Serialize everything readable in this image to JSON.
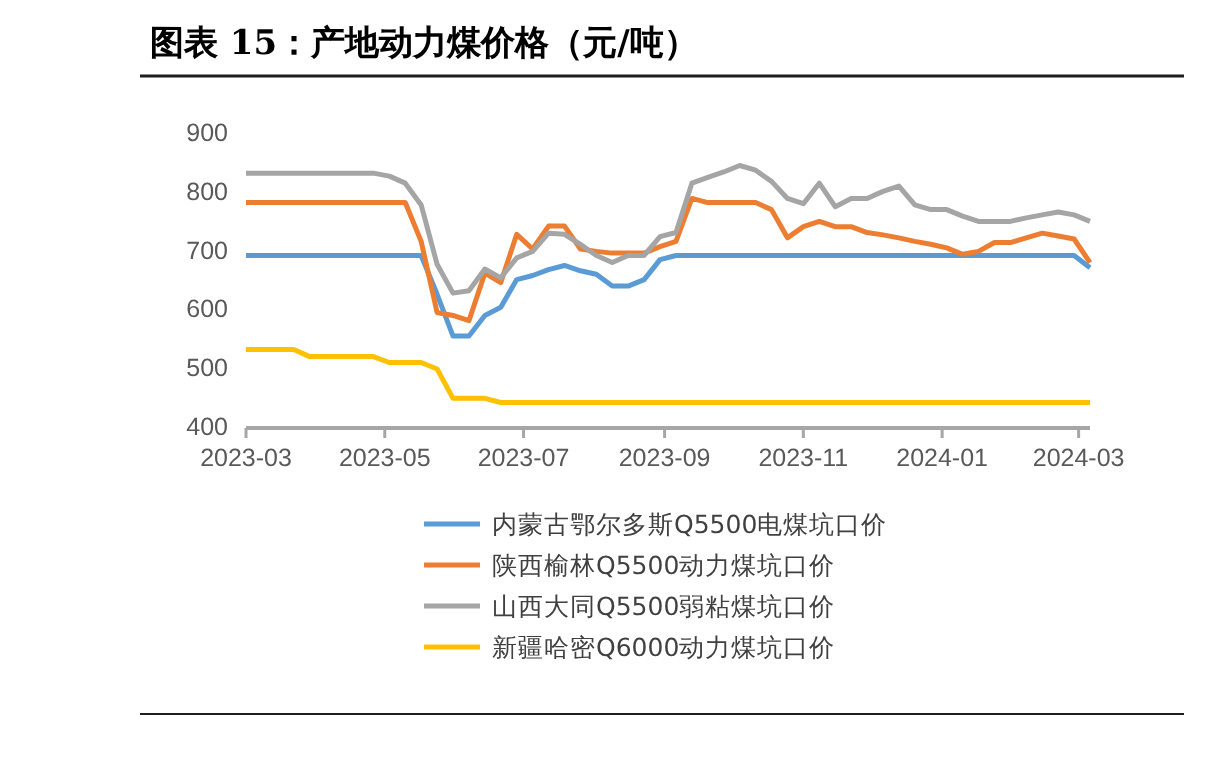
{
  "chart_data": {
    "type": "line",
    "title": "图表 15：产地动力煤价格（元/吨）",
    "x": [
      "2023-03-01",
      "2023-03-08",
      "2023-03-15",
      "2023-03-22",
      "2023-03-29",
      "2023-04-05",
      "2023-04-12",
      "2023-04-19",
      "2023-04-26",
      "2023-05-03",
      "2023-05-10",
      "2023-05-17",
      "2023-05-24",
      "2023-05-31",
      "2023-06-07",
      "2023-06-14",
      "2023-06-21",
      "2023-06-28",
      "2023-07-05",
      "2023-07-12",
      "2023-07-19",
      "2023-07-26",
      "2023-08-02",
      "2023-08-09",
      "2023-08-16",
      "2023-08-23",
      "2023-08-30",
      "2023-09-06",
      "2023-09-13",
      "2023-09-20",
      "2023-09-27",
      "2023-10-04",
      "2023-10-11",
      "2023-10-18",
      "2023-10-25",
      "2023-11-01",
      "2023-11-08",
      "2023-11-15",
      "2023-11-22",
      "2023-11-29",
      "2023-12-06",
      "2023-12-13",
      "2023-12-20",
      "2023-12-27",
      "2024-01-03",
      "2024-01-10",
      "2024-01-17",
      "2024-01-24",
      "2024-01-31",
      "2024-02-07",
      "2024-02-14",
      "2024-02-21",
      "2024-02-28",
      "2024-03-06"
    ],
    "series": [
      {
        "name": "内蒙古鄂尔多斯Q5500电煤坑口价",
        "color": "#5b9bd5",
        "values": [
          690,
          690,
          690,
          690,
          690,
          690,
          690,
          690,
          690,
          690,
          690,
          690,
          624,
          553,
          553,
          588,
          602,
          649,
          656,
          666,
          673,
          664,
          658,
          638,
          638,
          649,
          683,
          690,
          690,
          690,
          690,
          690,
          690,
          690,
          690,
          690,
          690,
          690,
          690,
          690,
          690,
          690,
          690,
          690,
          690,
          690,
          690,
          690,
          690,
          690,
          690,
          690,
          690,
          669
        ]
      },
      {
        "name": "陕西榆林Q5500动力煤坑口价",
        "color": "#ed7d31",
        "values": [
          780,
          780,
          780,
          780,
          780,
          780,
          780,
          780,
          780,
          780,
          780,
          714,
          593,
          588,
          579,
          660,
          644,
          726,
          701,
          740,
          740,
          701,
          697,
          694,
          694,
          694,
          705,
          714,
          787,
          780,
          780,
          780,
          780,
          768,
          720,
          739,
          748,
          739,
          739,
          729,
          725,
          720,
          714,
          709,
          703,
          692,
          697,
          712,
          712,
          720,
          728,
          723,
          718,
          678
        ]
      },
      {
        "name": "山西大同Q5500弱粘煤坑口价",
        "color": "#a5a5a5",
        "values": [
          830,
          830,
          830,
          830,
          830,
          830,
          830,
          830,
          830,
          825,
          813,
          776,
          675,
          626,
          630,
          667,
          652,
          686,
          697,
          728,
          726,
          709,
          690,
          678,
          690,
          690,
          722,
          729,
          813,
          823,
          832,
          843,
          835,
          816,
          787,
          778,
          813,
          773,
          787,
          787,
          799,
          808,
          776,
          768,
          768,
          757,
          748,
          748,
          748,
          754,
          759,
          764,
          759,
          748
        ]
      },
      {
        "name": "新疆哈密Q6000动力煤坑口价",
        "color": "#ffc000",
        "values": [
          530,
          530,
          530,
          530,
          518,
          518,
          518,
          518,
          518,
          508,
          508,
          508,
          497,
          447,
          447,
          447,
          440,
          440,
          440,
          440,
          440,
          440,
          440,
          440,
          440,
          440,
          440,
          440,
          440,
          440,
          440,
          440,
          440,
          440,
          440,
          440,
          440,
          440,
          440,
          440,
          440,
          440,
          440,
          440,
          440,
          440,
          440,
          440,
          440,
          440,
          440,
          440,
          440,
          440
        ]
      }
    ],
    "xlim": [
      "2023-03-01",
      "2024-03-06"
    ],
    "xticks": [
      "2023-03",
      "2023-05",
      "2023-07",
      "2023-09",
      "2023-11",
      "2024-01",
      "2024-03"
    ],
    "ylim": [
      400,
      900
    ],
    "yticks": [
      400,
      500,
      600,
      700,
      800,
      900
    ],
    "legend": "bottom"
  }
}
